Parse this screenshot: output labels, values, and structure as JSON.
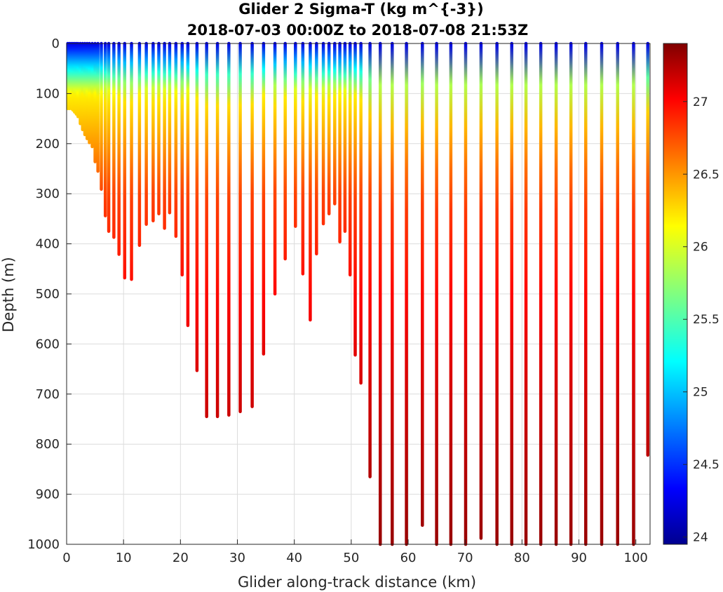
{
  "chart_data": {
    "type": "scatter",
    "title": "Glider 2 Sigma-T (kg m^{-3})",
    "subtitle": "2018-07-03 00:00Z to 2018-07-08 21:53Z",
    "xlabel": "Glider along-track distance (km)",
    "ylabel": "Depth (m)",
    "xlim": [
      0,
      102.5
    ],
    "ylim": [
      0,
      1000
    ],
    "y_reversed": true,
    "x_ticks": [
      "0",
      "10",
      "20",
      "30",
      "40",
      "50",
      "60",
      "70",
      "80",
      "90",
      "100"
    ],
    "y_ticks": [
      "0",
      "100",
      "200",
      "300",
      "400",
      "500",
      "600",
      "700",
      "800",
      "900",
      "1000"
    ],
    "grid": true,
    "colormap": "jet",
    "color_range": [
      23.95,
      27.4
    ],
    "colorbar_ticks": [
      "24",
      "24.5",
      "25",
      "25.5",
      "26",
      "26.5",
      "27"
    ],
    "profile_distance_km": [
      0.2,
      0.5,
      0.8,
      1.1,
      1.4,
      1.7,
      2.0,
      2.4,
      2.8,
      3.2,
      3.6,
      4.0,
      4.5,
      5.0,
      5.5,
      6.1,
      6.8,
      7.4,
      8.3,
      9.2,
      10.2,
      11.4,
      12.8,
      14.0,
      15.2,
      16.2,
      17.2,
      18.1,
      19.2,
      20.3,
      21.3,
      22.9,
      24.6,
      26.5,
      28.5,
      30.5,
      32.6,
      34.6,
      36.6,
      38.4,
      40.2,
      41.5,
      42.8,
      43.9,
      45.1,
      46.1,
      47.1,
      48.0,
      48.9,
      49.8,
      50.7,
      51.7,
      53.3,
      55.1,
      57.2,
      59.7,
      62.5,
      65.0,
      67.5,
      70.1,
      72.8,
      75.6,
      78.2,
      80.7,
      83.3,
      86.0,
      88.6,
      91.2,
      94.0,
      96.8,
      99.6,
      102.1
    ],
    "profile_max_depth_m": [
      130,
      130,
      130,
      133,
      137,
      141,
      146,
      160,
      172,
      182,
      190,
      198,
      206,
      236,
      255,
      291,
      344,
      375,
      387,
      421,
      468,
      471,
      403,
      361,
      354,
      340,
      369,
      338,
      385,
      462,
      563,
      653,
      745,
      745,
      742,
      735,
      725,
      620,
      500,
      430,
      365,
      460,
      552,
      420,
      360,
      340,
      320,
      396,
      375,
      462,
      622,
      678,
      865,
      1000,
      1000,
      1000,
      962,
      1000,
      1000,
      1000,
      988,
      1000,
      1000,
      1000,
      1000,
      1000,
      1000,
      1000,
      1000,
      1000,
      1000,
      822
    ]
  }
}
